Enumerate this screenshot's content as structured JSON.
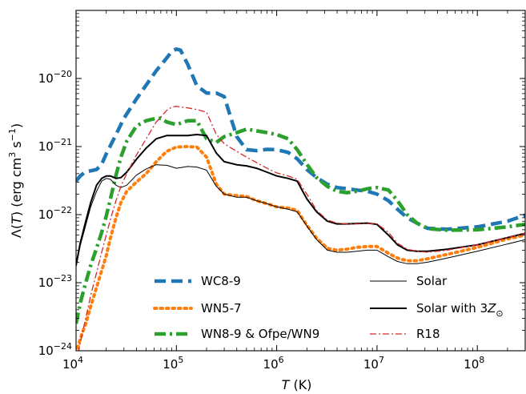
{
  "chart_data": {
    "type": "line",
    "xscale": "log",
    "yscale": "log",
    "xlim": [
      10000,
      300000000
    ],
    "ylim": [
      1e-24,
      1e-19
    ],
    "xlabel": {
      "symbol": "T",
      "unit": " (K)"
    },
    "ylabel": {
      "prefix": "Λ(",
      "symbol": "T",
      "suffix": ") (erg cm",
      "sup1": "3",
      "mid": " s",
      "sup2": "−1",
      "end": ")"
    },
    "xticks": [
      {
        "value": 10000,
        "base": "10",
        "exp": "4"
      },
      {
        "value": 100000,
        "base": "10",
        "exp": "5"
      },
      {
        "value": 1000000,
        "base": "10",
        "exp": "6"
      },
      {
        "value": 10000000,
        "base": "10",
        "exp": "7"
      },
      {
        "value": 100000000,
        "base": "10",
        "exp": "8"
      }
    ],
    "yticks": [
      {
        "value": 1e-24,
        "base": "10",
        "exp": "−24"
      },
      {
        "value": 1e-23,
        "base": "10",
        "exp": "−23"
      },
      {
        "value": 1e-22,
        "base": "10",
        "exp": "−22"
      },
      {
        "value": 1e-21,
        "base": "10",
        "exp": "−21"
      },
      {
        "value": 1e-20,
        "base": "10",
        "exp": "−20"
      }
    ],
    "legend_placement": "bottom",
    "series": [
      {
        "name": "WC8-9",
        "color": "#1f77b4",
        "style": "dashed",
        "width": 4.5,
        "legend_col": 0,
        "legend_row": 0,
        "x": [
          10000,
          11000,
          12500,
          14000,
          16000,
          18000,
          20000,
          25000,
          30000,
          40000,
          50000,
          63000,
          80000,
          90000,
          100000,
          110000,
          130000,
          160000,
          200000,
          250000,
          300000,
          400000,
          500000,
          630000,
          800000,
          1000000,
          1300000,
          1600000,
          2000000,
          2500000,
          3200000,
          4000000,
          5000000,
          6300000,
          8000000,
          10000000,
          13000000,
          16000000,
          20000000,
          25000000,
          32000000,
          50000000,
          100000000,
          200000000,
          300000000
        ],
        "y": [
          3.1e-22,
          3.7e-22,
          4.3e-22,
          4.4e-22,
          4.6e-22,
          5.5e-22,
          7.8e-22,
          1.5e-21,
          2.6e-21,
          5e-21,
          8e-21,
          1.3e-20,
          2e-20,
          2.5e-20,
          2.7e-20,
          2.6e-20,
          1.6e-20,
          7.8e-21,
          6.1e-21,
          6.1e-21,
          5.4e-21,
          1.4e-21,
          9e-22,
          8.7e-22,
          9.1e-22,
          9e-22,
          8.2e-22,
          6.6e-22,
          4.6e-22,
          3.5e-22,
          2.8e-22,
          2.5e-22,
          2.4e-22,
          2.3e-22,
          2.2e-22,
          2e-22,
          1.6e-22,
          1.2e-22,
          9e-23,
          7.5e-23,
          6.3e-23,
          6.1e-23,
          6.6e-23,
          8e-23,
          9.8e-23
        ]
      },
      {
        "name": "WN5-7",
        "color": "#ff7f0e",
        "style": "dotted",
        "width": 4,
        "legend_col": 0,
        "legend_row": 1,
        "x": [
          10000,
          11000,
          12500,
          14000,
          16000,
          18000,
          20000,
          22000,
          25000,
          28000,
          32000,
          40000,
          50000,
          63000,
          80000,
          100000,
          130000,
          160000,
          200000,
          250000,
          300000,
          400000,
          500000,
          630000,
          800000,
          1000000,
          1300000,
          1600000,
          2000000,
          2500000,
          3200000,
          4000000,
          5000000,
          6300000,
          8000000,
          10000000,
          13000000,
          16000000,
          20000000,
          25000000,
          32000000,
          50000000,
          100000000,
          200000000,
          300000000
        ],
        "y": [
          9e-25,
          1.5e-24,
          2.5e-24,
          4.5e-24,
          8.5e-24,
          1.5e-23,
          2.5e-23,
          4.5e-23,
          9e-23,
          1.5e-22,
          2.2e-22,
          3e-22,
          4e-22,
          6e-22,
          8.5e-22,
          9.8e-22,
          1e-21,
          9.8e-22,
          7e-22,
          2.8e-22,
          2e-22,
          1.9e-22,
          1.85e-22,
          1.6e-22,
          1.45e-22,
          1.3e-22,
          1.25e-22,
          1.15e-22,
          7e-23,
          4.5e-23,
          3.2e-23,
          3e-23,
          3.1e-23,
          3.3e-23,
          3.4e-23,
          3.4e-23,
          2.7e-23,
          2.3e-23,
          2.1e-23,
          2.1e-23,
          2.25e-23,
          2.6e-23,
          3.3e-23,
          4.4e-23,
          5e-23
        ]
      },
      {
        "name": "WN8-9 & Ofpe/WN9",
        "color": "#2ca02c",
        "style": "dashdot",
        "width": 4.5,
        "legend_col": 0,
        "legend_row": 2,
        "x": [
          10000,
          11000,
          12500,
          14000,
          16000,
          18000,
          20000,
          22000,
          25000,
          28000,
          32000,
          40000,
          50000,
          63000,
          70000,
          80000,
          100000,
          130000,
          160000,
          200000,
          250000,
          300000,
          400000,
          500000,
          630000,
          800000,
          1000000,
          1300000,
          1600000,
          2000000,
          2500000,
          3200000,
          4000000,
          5000000,
          6300000,
          8000000,
          10000000,
          13000000,
          16000000,
          20000000,
          25000000,
          32000000,
          50000000,
          100000000,
          200000000,
          300000000
        ],
        "y": [
          2.5e-24,
          5e-24,
          1e-23,
          1.8e-23,
          3.2e-23,
          5.5e-23,
          9.5e-23,
          1.7e-22,
          3.8e-22,
          7e-22,
          1.2e-21,
          2e-21,
          2.4e-21,
          2.6e-21,
          2.6e-21,
          2.3e-21,
          2.1e-21,
          2.4e-21,
          2.4e-21,
          1.3e-21,
          1.15e-21,
          1.4e-21,
          1.6e-21,
          1.8e-21,
          1.7e-21,
          1.6e-21,
          1.5e-21,
          1.3e-21,
          9e-22,
          5.5e-22,
          3.5e-22,
          2.6e-22,
          2.2e-22,
          2.1e-22,
          2.2e-22,
          2.4e-22,
          2.5e-22,
          2.3e-22,
          1.6e-22,
          1e-22,
          7.5e-23,
          6.2e-23,
          5.9e-23,
          6e-23,
          6.6e-23,
          7.2e-23
        ]
      },
      {
        "name": "Solar",
        "color": "#000000",
        "style": "solid",
        "width": 1,
        "legend_col": 1,
        "legend_row": 0,
        "x": [
          10000,
          11000,
          12500,
          14000,
          16000,
          18000,
          20000,
          22000,
          25000,
          28000,
          32000,
          40000,
          50000,
          63000,
          80000,
          100000,
          130000,
          160000,
          200000,
          250000,
          300000,
          400000,
          500000,
          630000,
          800000,
          1000000,
          1300000,
          1600000,
          2000000,
          2500000,
          3200000,
          4000000,
          5000000,
          6300000,
          8000000,
          10000000,
          13000000,
          16000000,
          20000000,
          25000000,
          32000000,
          50000000,
          100000000,
          200000000,
          300000000
        ],
        "y": [
          1.7e-23,
          3.5e-23,
          7e-23,
          1.3e-22,
          2.2e-22,
          3.1e-22,
          3.4e-22,
          3.3e-22,
          2.7e-22,
          2.5e-22,
          2.7e-22,
          3.8e-22,
          4.7e-22,
          5.4e-22,
          5.3e-22,
          4.8e-22,
          5.1e-22,
          5e-22,
          4.5e-22,
          2.6e-22,
          2e-22,
          1.8e-22,
          1.8e-22,
          1.6e-22,
          1.45e-22,
          1.3e-22,
          1.2e-22,
          1.1e-22,
          6.8e-23,
          4.3e-23,
          3e-23,
          2.8e-23,
          2.8e-23,
          2.9e-23,
          3e-23,
          3e-23,
          2.4e-23,
          2.05e-23,
          1.9e-23,
          1.9e-23,
          2e-23,
          2.3e-23,
          2.9e-23,
          3.7e-23,
          4.3e-23
        ]
      },
      {
        "name_prefix": "Solar with 3",
        "name_symbol": "Z",
        "name_sub": "⊙",
        "color": "#000000",
        "style": "solid",
        "width": 2,
        "legend_col": 1,
        "legend_row": 1,
        "x": [
          10000,
          11000,
          12500,
          14000,
          16000,
          18000,
          20000,
          22000,
          25000,
          28000,
          32000,
          40000,
          50000,
          63000,
          80000,
          100000,
          130000,
          160000,
          200000,
          250000,
          300000,
          400000,
          500000,
          630000,
          800000,
          1000000,
          1300000,
          1600000,
          2000000,
          2500000,
          3200000,
          4000000,
          5000000,
          6300000,
          8000000,
          10000000,
          13000000,
          16000000,
          20000000,
          25000000,
          32000000,
          50000000,
          100000000,
          200000000,
          300000000
        ],
        "y": [
          1.8e-23,
          3.8e-23,
          8e-23,
          1.5e-22,
          2.7e-22,
          3.4e-22,
          3.7e-22,
          3.7e-22,
          3.4e-22,
          3.5e-22,
          4.2e-22,
          6.5e-22,
          9.5e-22,
          1.3e-21,
          1.45e-21,
          1.45e-21,
          1.45e-21,
          1.5e-21,
          1.45e-21,
          8e-22,
          6e-22,
          5.4e-22,
          5.2e-22,
          4.8e-22,
          4.2e-22,
          3.7e-22,
          3.4e-22,
          3.1e-22,
          1.7e-22,
          1.1e-22,
          8e-23,
          7.3e-23,
          7.3e-23,
          7.4e-23,
          7.5e-23,
          7.2e-23,
          5e-23,
          3.6e-23,
          3e-23,
          2.9e-23,
          2.9e-23,
          3.1e-23,
          3.6e-23,
          4.6e-23,
          5.3e-23
        ]
      },
      {
        "name": "R18",
        "color": "#d62728",
        "style": "dashdot-thin",
        "width": 1.3,
        "legend_col": 1,
        "legend_row": 2,
        "x": [
          10000,
          11000,
          12500,
          14000,
          16000,
          18000,
          20000,
          22000,
          25000,
          28000,
          32000,
          40000,
          50000,
          63000,
          80000,
          90000,
          100000,
          130000,
          160000,
          200000,
          250000,
          300000,
          400000,
          500000,
          630000,
          800000,
          1000000,
          1300000,
          1600000,
          2000000,
          2500000,
          3200000,
          4000000,
          5000000,
          6300000,
          8000000,
          10000000,
          13000000,
          16000000,
          20000000,
          25000000,
          32000000,
          50000000,
          100000000,
          200000000,
          300000000
        ],
        "y": [
          6e-25,
          1.3e-24,
          3e-24,
          6.5e-24,
          1.4e-23,
          2.8e-23,
          5e-23,
          8.5e-23,
          1.6e-22,
          2.6e-22,
          4e-22,
          7.5e-22,
          1.3e-21,
          2.3e-21,
          3.4e-21,
          3.8e-21,
          3.9e-21,
          3.7e-21,
          3.5e-21,
          3.2e-21,
          1.5e-21,
          1.1e-21,
          8.5e-22,
          7e-22,
          5.8e-22,
          4.8e-22,
          4.1e-22,
          3.7e-22,
          3.3e-22,
          2e-22,
          1.15e-22,
          8.3e-23,
          7.5e-23,
          7.3e-23,
          7.3e-23,
          7.4e-23,
          7.3e-23,
          5.5e-23,
          3.8e-23,
          3.1e-23,
          2.9e-23,
          2.8e-23,
          3e-23,
          3.6e-23,
          4.6e-23,
          5.3e-23
        ]
      }
    ]
  }
}
